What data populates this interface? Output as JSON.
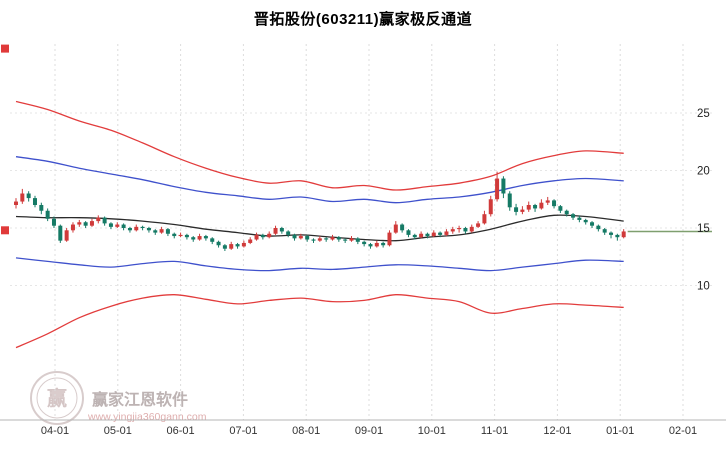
{
  "watermark": {
    "brand": "赢家江恩软件",
    "url": "www.yingjia360gann.com",
    "logo_char": "赢"
  },
  "axis_markers": {
    "color": "#e03a3a",
    "values": [
      30.6,
      14.8
    ],
    "price_line_color": "#7f9f6f"
  },
  "chart_data": {
    "type": "candlestick",
    "title": "晋拓股份(603211)赢家极反通道",
    "x_tick_labels": [
      "04-01",
      "05-01",
      "06-01",
      "07-01",
      "08-01",
      "09-01",
      "10-01",
      "11-01",
      "12-01",
      "01-01",
      "02-01"
    ],
    "y_ticks": [
      25,
      20,
      15,
      10
    ],
    "ylim": [
      -1.7,
      30.9
    ],
    "grid": true,
    "up_color": "#d03a3a",
    "down_color": "#157a65",
    "current_price": 14.7,
    "series": [
      {
        "name": "upper-channel-red-line",
        "color": "#e23c3c",
        "x": [
          0,
          5,
          10,
          15,
          20,
          25,
          30,
          35,
          40,
          45,
          50,
          55,
          60,
          65,
          70,
          75,
          80,
          85,
          90,
          96
        ],
        "values": [
          26.0,
          25.3,
          24.3,
          23.5,
          22.4,
          21.2,
          20.2,
          19.4,
          18.9,
          19.1,
          18.5,
          18.7,
          18.3,
          18.6,
          18.9,
          19.5,
          20.6,
          21.3,
          21.7,
          21.5
        ]
      },
      {
        "name": "upper-channel-blue-line",
        "color": "#3f51cc",
        "x": [
          0,
          5,
          10,
          15,
          20,
          25,
          30,
          35,
          40,
          45,
          50,
          55,
          60,
          65,
          70,
          75,
          80,
          85,
          90,
          96
        ],
        "values": [
          21.2,
          20.8,
          20.2,
          19.7,
          19.2,
          18.6,
          18.1,
          17.8,
          17.5,
          17.7,
          17.3,
          17.5,
          17.2,
          17.5,
          17.7,
          18.1,
          18.7,
          19.1,
          19.3,
          19.1
        ]
      },
      {
        "name": "middle-black-line",
        "color": "#2b2b2b",
        "x": [
          0,
          5,
          10,
          15,
          20,
          25,
          30,
          35,
          40,
          45,
          50,
          55,
          60,
          65,
          70,
          75,
          80,
          85,
          90,
          96
        ],
        "values": [
          16.0,
          15.9,
          15.9,
          15.8,
          15.6,
          15.3,
          14.9,
          14.6,
          14.3,
          14.4,
          14.2,
          14.0,
          13.9,
          14.2,
          14.4,
          14.9,
          15.6,
          16.1,
          16.0,
          15.6
        ]
      },
      {
        "name": "lower-channel-blue-line",
        "color": "#3f51cc",
        "x": [
          0,
          5,
          10,
          15,
          20,
          25,
          30,
          35,
          40,
          45,
          50,
          55,
          60,
          65,
          70,
          75,
          80,
          85,
          90,
          96
        ],
        "values": [
          12.4,
          12.1,
          11.8,
          11.6,
          11.9,
          12.1,
          11.7,
          11.4,
          11.3,
          11.5,
          11.4,
          11.6,
          11.8,
          11.7,
          11.5,
          11.3,
          11.6,
          11.9,
          12.2,
          12.1
        ]
      },
      {
        "name": "lower-channel-red-line",
        "color": "#e23c3c",
        "x": [
          0,
          5,
          10,
          15,
          20,
          25,
          30,
          35,
          40,
          45,
          50,
          55,
          60,
          65,
          70,
          75,
          80,
          85,
          90,
          96
        ],
        "values": [
          4.6,
          5.8,
          7.2,
          8.2,
          8.9,
          9.2,
          8.8,
          8.4,
          8.7,
          8.9,
          8.6,
          8.7,
          9.2,
          8.9,
          8.6,
          7.6,
          8.0,
          8.4,
          8.3,
          8.1
        ]
      }
    ],
    "candles": [
      [
        17.0,
        17.6,
        16.7,
        17.3
      ],
      [
        17.3,
        18.4,
        17.1,
        18.0
      ],
      [
        18.0,
        18.2,
        17.3,
        17.6
      ],
      [
        17.6,
        17.8,
        16.8,
        17.0
      ],
      [
        17.0,
        17.2,
        16.2,
        16.5
      ],
      [
        16.5,
        16.7,
        15.6,
        15.8
      ],
      [
        15.8,
        16.0,
        15.0,
        15.2
      ],
      [
        15.2,
        15.3,
        13.7,
        13.9
      ],
      [
        13.9,
        15.0,
        13.8,
        14.8
      ],
      [
        14.8,
        15.5,
        14.6,
        15.3
      ],
      [
        15.3,
        15.7,
        15.1,
        15.5
      ],
      [
        15.5,
        15.6,
        15.0,
        15.2
      ],
      [
        15.2,
        15.8,
        15.1,
        15.6
      ],
      [
        15.6,
        16.1,
        15.4,
        15.9
      ],
      [
        15.9,
        16.0,
        15.2,
        15.4
      ],
      [
        15.4,
        15.5,
        14.9,
        15.1
      ],
      [
        15.1,
        15.5,
        15.0,
        15.3
      ],
      [
        15.3,
        15.4,
        14.8,
        15.0
      ],
      [
        15.0,
        15.1,
        14.6,
        14.8
      ],
      [
        14.8,
        15.3,
        14.7,
        15.1
      ],
      [
        15.1,
        15.2,
        14.8,
        15.0
      ],
      [
        15.0,
        15.1,
        14.6,
        14.8
      ],
      [
        14.8,
        14.9,
        14.4,
        14.6
      ],
      [
        14.6,
        15.1,
        14.5,
        14.9
      ],
      [
        14.9,
        15.0,
        14.3,
        14.5
      ],
      [
        14.5,
        14.6,
        14.1,
        14.3
      ],
      [
        14.3,
        14.6,
        14.2,
        14.4
      ],
      [
        14.4,
        14.5,
        14.0,
        14.2
      ],
      [
        14.2,
        14.3,
        13.8,
        14.0
      ],
      [
        14.0,
        14.5,
        13.9,
        14.3
      ],
      [
        14.3,
        14.4,
        13.9,
        14.1
      ],
      [
        14.1,
        14.2,
        13.6,
        13.8
      ],
      [
        13.8,
        13.9,
        13.3,
        13.5
      ],
      [
        13.5,
        13.6,
        13.0,
        13.2
      ],
      [
        13.2,
        13.8,
        13.1,
        13.6
      ],
      [
        13.6,
        13.7,
        13.2,
        13.4
      ],
      [
        13.4,
        13.9,
        13.3,
        13.7
      ],
      [
        13.7,
        14.2,
        13.6,
        14.0
      ],
      [
        14.0,
        14.6,
        13.9,
        14.4
      ],
      [
        14.4,
        14.5,
        14.0,
        14.2
      ],
      [
        14.2,
        14.7,
        14.1,
        14.5
      ],
      [
        14.5,
        15.2,
        14.4,
        15.0
      ],
      [
        15.0,
        15.1,
        14.5,
        14.7
      ],
      [
        14.7,
        14.8,
        14.2,
        14.4
      ],
      [
        14.4,
        14.5,
        13.9,
        14.1
      ],
      [
        14.1,
        14.5,
        14.0,
        14.3
      ],
      [
        14.3,
        14.4,
        13.8,
        14.0
      ],
      [
        14.0,
        14.1,
        13.7,
        13.9
      ],
      [
        13.9,
        14.3,
        13.8,
        14.1
      ],
      [
        14.1,
        14.2,
        13.8,
        14.0
      ],
      [
        14.0,
        14.4,
        13.9,
        14.2
      ],
      [
        14.2,
        14.3,
        13.8,
        14.0
      ],
      [
        14.0,
        14.1,
        13.7,
        13.9
      ],
      [
        13.9,
        14.3,
        13.8,
        14.1
      ],
      [
        14.1,
        14.2,
        13.6,
        13.8
      ],
      [
        13.8,
        13.9,
        13.4,
        13.6
      ],
      [
        13.6,
        13.7,
        13.2,
        13.4
      ],
      [
        13.4,
        13.9,
        13.3,
        13.7
      ],
      [
        13.7,
        13.8,
        13.3,
        13.5
      ],
      [
        13.5,
        14.8,
        13.4,
        14.6
      ],
      [
        14.6,
        15.6,
        14.5,
        15.3
      ],
      [
        15.3,
        15.4,
        14.6,
        14.8
      ],
      [
        14.8,
        14.9,
        14.2,
        14.4
      ],
      [
        14.4,
        14.5,
        14.0,
        14.2
      ],
      [
        14.2,
        14.7,
        14.1,
        14.5
      ],
      [
        14.5,
        14.6,
        14.1,
        14.3
      ],
      [
        14.3,
        14.8,
        14.2,
        14.6
      ],
      [
        14.6,
        14.7,
        14.2,
        14.4
      ],
      [
        14.4,
        14.9,
        14.3,
        14.7
      ],
      [
        14.7,
        15.1,
        14.5,
        14.9
      ],
      [
        14.9,
        15.2,
        14.6,
        15.0
      ],
      [
        15.0,
        15.1,
        14.5,
        14.7
      ],
      [
        14.7,
        15.3,
        14.6,
        15.1
      ],
      [
        15.1,
        15.6,
        15.0,
        15.4
      ],
      [
        15.4,
        16.5,
        15.3,
        16.2
      ],
      [
        16.2,
        17.8,
        16.0,
        17.5
      ],
      [
        17.5,
        19.9,
        17.3,
        19.3
      ],
      [
        19.3,
        19.5,
        17.6,
        18.0
      ],
      [
        18.0,
        18.2,
        16.5,
        16.8
      ],
      [
        16.8,
        17.1,
        16.1,
        16.4
      ],
      [
        16.4,
        16.9,
        16.2,
        16.6
      ],
      [
        16.6,
        17.3,
        16.4,
        17.0
      ],
      [
        17.0,
        17.1,
        16.4,
        16.7
      ],
      [
        16.7,
        17.5,
        16.6,
        17.2
      ],
      [
        17.2,
        17.7,
        17.0,
        17.4
      ],
      [
        17.4,
        17.5,
        16.7,
        16.9
      ],
      [
        16.9,
        17.0,
        16.3,
        16.5
      ],
      [
        16.5,
        16.6,
        16.0,
        16.2
      ],
      [
        16.2,
        16.3,
        15.7,
        15.9
      ],
      [
        15.9,
        16.1,
        15.5,
        15.7
      ],
      [
        15.7,
        15.8,
        15.3,
        15.5
      ],
      [
        15.5,
        15.6,
        15.0,
        15.2
      ],
      [
        15.2,
        15.3,
        14.7,
        14.9
      ],
      [
        14.9,
        15.0,
        14.4,
        14.6
      ],
      [
        14.6,
        14.7,
        14.1,
        14.4
      ],
      [
        14.4,
        14.5,
        13.9,
        14.2
      ],
      [
        14.2,
        14.9,
        14.1,
        14.7
      ]
    ]
  }
}
